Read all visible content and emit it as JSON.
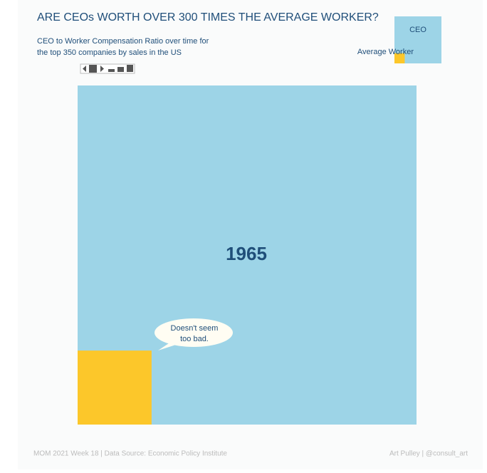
{
  "chart_data": {
    "type": "square",
    "title": "ARE CEOs WORTH OVER 300 TIMES THE AVERAGE WORKER?",
    "subtitle": [
      "CEO to Worker Compensation Ratio over time for",
      "the top 350 companies by sales in the US"
    ],
    "year": "1965",
    "annotation": [
      "Doesn't seem",
      "too bad."
    ],
    "series": [
      {
        "name": "CEO",
        "color": "#9dd4e7",
        "values": [
          21
        ]
      },
      {
        "name": "Average Worker",
        "color": "#fcc72a",
        "values": [
          1
        ]
      }
    ],
    "footer_left": "MOM 2021 Week 18 | Data Source: Economic Policy Institute",
    "footer_right": "Art Pulley | @consult_art"
  }
}
